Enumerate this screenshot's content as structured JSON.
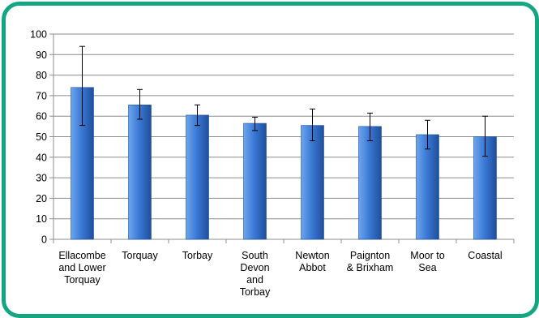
{
  "chart_data": {
    "type": "bar",
    "title": "",
    "xlabel": "",
    "ylabel": "",
    "ylim": [
      0,
      100
    ],
    "yticks": [
      0,
      10,
      20,
      30,
      40,
      50,
      60,
      70,
      80,
      90,
      100
    ],
    "grid": true,
    "legend": "none",
    "categories": [
      [
        "Ellacombe",
        "and Lower",
        "Torquay"
      ],
      [
        "Torquay"
      ],
      [
        "Torbay"
      ],
      [
        "South",
        "Devon",
        "and",
        "Torbay"
      ],
      [
        "Newton",
        "Abbot"
      ],
      [
        "Paignton",
        "& Brixham"
      ],
      [
        "Moor to",
        "Sea"
      ],
      [
        "Coastal"
      ]
    ],
    "values": [
      74,
      65.5,
      60.5,
      56.5,
      55.5,
      55,
      51,
      50
    ],
    "error_low": [
      55.5,
      58.5,
      55.5,
      53,
      48,
      48,
      44,
      40.5
    ],
    "error_high": [
      94,
      73,
      65.5,
      59.5,
      63.5,
      61.5,
      58,
      60
    ],
    "colors": {
      "bar_light": "#6ea6ec",
      "bar_mid": "#3b7ad6",
      "bar_dark": "#1f4f9c",
      "frame": "#13a680",
      "grid": "#8c8c8c"
    }
  }
}
